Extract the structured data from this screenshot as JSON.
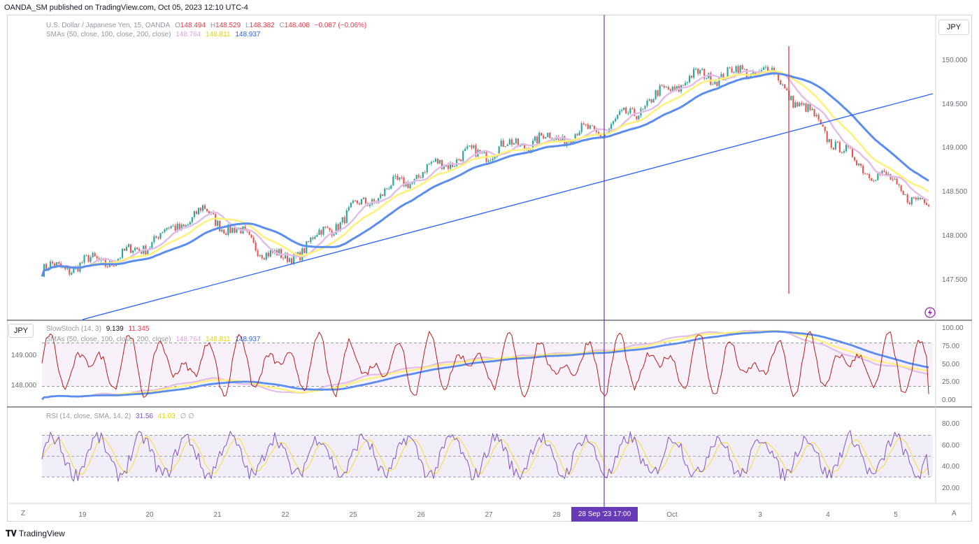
{
  "header": {
    "publish_line": "OANDA_SM published on TradingView.com, Oct 05, 2023 12:10 UTC-4"
  },
  "main_legend": {
    "symbol": "U.S. Dollar / Japanese Yen, 15, OANDA",
    "o_label": "O",
    "o_value": "148.494",
    "h_label": "H",
    "h_value": "148.529",
    "l_label": "L",
    "l_value": "148.382",
    "c_label": "C",
    "c_value": "148.408",
    "change": "−0.087 (−0.06%)",
    "sma_label": "SMAs (50, close, 100, close, 200, close)",
    "sma50": "148.764",
    "sma100": "148.811",
    "sma200": "148.937"
  },
  "stoch_legend": {
    "label": "SlowStoch (14, 3)",
    "k": "9.139",
    "d": "11.345",
    "sma_label": "SMAs (50, close, 100, close, 200, close)",
    "sma50": "148.764",
    "sma100": "148.811",
    "sma200": "148.937"
  },
  "rsi_legend": {
    "label": "RSI (14, close, SMA, 14, 2)",
    "rsi": "31.56",
    "ma": "41.03",
    "extra": "∅ ∅"
  },
  "buttons": {
    "main_currency": "JPY",
    "stoch_currency": "JPY",
    "zoom": "Z",
    "auto": "A"
  },
  "price_axis": [
    "150.000",
    "149.500",
    "149.000",
    "148.500",
    "148.000",
    "147.500"
  ],
  "stoch_price_axis": [
    "149.000",
    "148.000"
  ],
  "stoch_axis": [
    "100.00",
    "75.00",
    "50.00",
    "25.00",
    "0.00"
  ],
  "rsi_axis": [
    "80.00",
    "60.00",
    "40.00",
    "20.00"
  ],
  "time_axis": [
    "19",
    "20",
    "21",
    "22",
    "25",
    "26",
    "27",
    "28",
    "Oct",
    "3",
    "4",
    "5"
  ],
  "crosshair_label": "28 Sep '23   17:00",
  "brand": "TradingView",
  "colors": {
    "sma50": "#e1bee7",
    "sma100": "#fff176",
    "sma200": "#5b8def",
    "up": "#26a69a",
    "down": "#ef5350",
    "trendline": "#2962ff",
    "crosshair": "#673ab7",
    "stoch_k": "#b71c1c",
    "rsi": "#7e57c2",
    "rsi_ma": "#fdd835",
    "event_line": "#f23645"
  },
  "chart_data": [
    {
      "type": "candlestick",
      "title": "U.S. Dollar / Japanese Yen, 15, OANDA",
      "x": [
        "19",
        "20",
        "21",
        "22",
        "25",
        "26",
        "27",
        "28",
        "Oct",
        "3",
        "4",
        "5"
      ],
      "close_approx": [
        147.7,
        147.85,
        148.35,
        147.8,
        148.45,
        148.9,
        149.1,
        149.25,
        149.8,
        149.9,
        148.95,
        148.4
      ],
      "sma50_last": 148.764,
      "sma100_last": 148.811,
      "sma200_last": 148.937,
      "ohlc_last": {
        "open": 148.494,
        "high": 148.529,
        "low": 148.382,
        "close": 148.408
      },
      "ylim": [
        147.3,
        150.2
      ]
    },
    {
      "type": "line",
      "title": "SlowStoch (14, 3)",
      "k_last": 9.139,
      "d_last": 11.345,
      "ylim": [
        0,
        100
      ],
      "bands": [
        20,
        80
      ]
    },
    {
      "type": "line",
      "title": "RSI (14, close, SMA, 14, 2)",
      "rsi_last": 31.56,
      "ma_last": 41.03,
      "ylim": [
        10,
        85
      ],
      "bands": [
        30,
        70
      ]
    }
  ]
}
